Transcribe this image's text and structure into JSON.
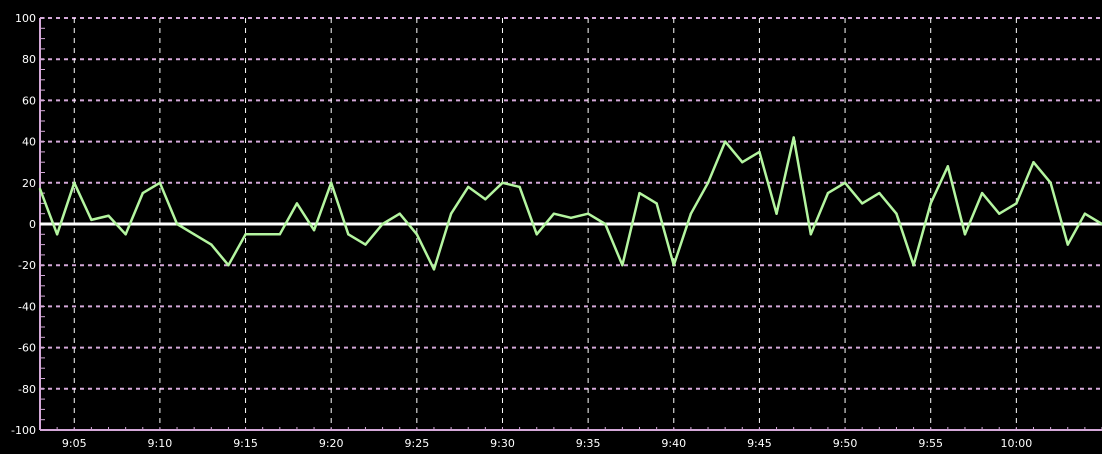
{
  "chart_data": {
    "type": "line",
    "title": "",
    "xlabel": "",
    "ylabel": "",
    "ylim": [
      -100,
      100
    ],
    "xlim": [
      "9:03",
      "10:05"
    ],
    "grid": true,
    "legend": "top-left (partially cropped)",
    "y_ticks": [
      100,
      80,
      60,
      40,
      20,
      0,
      -20,
      -40,
      -60,
      -80,
      -100
    ],
    "y_tick_labels": [
      "100",
      "80",
      "60",
      "40",
      "20",
      "0",
      "-20",
      "-40",
      "-60",
      "-80",
      "-100"
    ],
    "x_ticks": [
      "9:05",
      "9:10",
      "9:15",
      "9:20",
      "9:25",
      "9:30",
      "9:35",
      "9:40",
      "9:45",
      "9:50",
      "9:55",
      "10:00"
    ],
    "zero_line": 0,
    "series": [
      {
        "color": "#b4f5a0",
        "points": [
          [
            "9:03",
            17
          ],
          [
            "9:04",
            -5
          ],
          [
            "9:05",
            20
          ],
          [
            "9:06",
            2
          ],
          [
            "9:07",
            4
          ],
          [
            "9:08",
            -5
          ],
          [
            "9:09",
            15
          ],
          [
            "9:10",
            20
          ],
          [
            "9:11",
            0
          ],
          [
            "9:12",
            -5
          ],
          [
            "9:13",
            -10
          ],
          [
            "9:14",
            -20
          ],
          [
            "9:15",
            -5
          ],
          [
            "9:16",
            -5
          ],
          [
            "9:17",
            -5
          ],
          [
            "9:18",
            10
          ],
          [
            "9:19",
            -3
          ],
          [
            "9:20",
            20
          ],
          [
            "9:21",
            -5
          ],
          [
            "9:22",
            -10
          ],
          [
            "9:23",
            0
          ],
          [
            "9:24",
            5
          ],
          [
            "9:25",
            -5
          ],
          [
            "9:26",
            -22
          ],
          [
            "9:27",
            5
          ],
          [
            "9:28",
            18
          ],
          [
            "9:29",
            12
          ],
          [
            "9:30",
            20
          ],
          [
            "9:31",
            18
          ],
          [
            "9:32",
            -5
          ],
          [
            "9:33",
            5
          ],
          [
            "9:34",
            3
          ],
          [
            "9:35",
            5
          ],
          [
            "9:36",
            0
          ],
          [
            "9:37",
            -20
          ],
          [
            "9:38",
            15
          ],
          [
            "9:39",
            10
          ],
          [
            "9:40",
            -20
          ],
          [
            "9:41",
            5
          ],
          [
            "9:42",
            20
          ],
          [
            "9:43",
            40
          ],
          [
            "9:44",
            30
          ],
          [
            "9:45",
            35
          ],
          [
            "9:46",
            5
          ],
          [
            "9:47",
            42
          ],
          [
            "9:48",
            -5
          ],
          [
            "9:49",
            15
          ],
          [
            "9:50",
            20
          ],
          [
            "9:51",
            10
          ],
          [
            "9:52",
            15
          ],
          [
            "9:53",
            5
          ],
          [
            "9:54",
            -20
          ],
          [
            "9:55",
            10
          ],
          [
            "9:56",
            28
          ],
          [
            "9:57",
            -5
          ],
          [
            "9:58",
            15
          ],
          [
            "9:59",
            5
          ],
          [
            "10:00",
            10
          ],
          [
            "10:01",
            30
          ],
          [
            "10:02",
            20
          ],
          [
            "10:03",
            -10
          ],
          [
            "10:04",
            5
          ],
          [
            "10:05",
            0
          ]
        ]
      }
    ]
  }
}
